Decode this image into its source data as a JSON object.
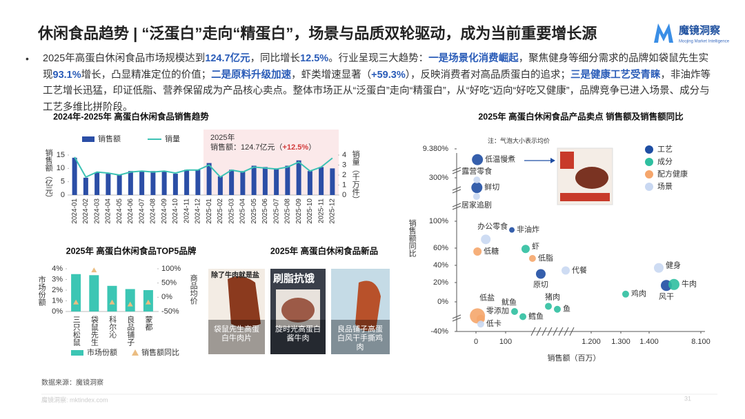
{
  "header": {
    "title": "休闲食品趋势 | “泛蛋白”走向“精蛋白”，场景与品质双轮驱动，成为当前重要增长源",
    "logo": "魔镜洞察",
    "logo_sub": "Moojing Market Intelligence"
  },
  "bullet": {
    "segments": [
      {
        "text": "2025年高蛋白休闲食品市场规模达到",
        "style": "normal"
      },
      {
        "text": "124.7亿元",
        "style": "highlight"
      },
      {
        "text": "，同比增长",
        "style": "normal"
      },
      {
        "text": "12.5%",
        "style": "highlight"
      },
      {
        "text": "。行业呈现三大趋势：",
        "style": "normal"
      },
      {
        "text": "一是场景化消费崛起",
        "style": "highlight"
      },
      {
        "text": "，聚焦健身等细分需求的品牌如袋鼠先生实现",
        "style": "normal"
      },
      {
        "text": "93.1%",
        "style": "highlight"
      },
      {
        "text": "增长，凸显精准定位的价值；",
        "style": "normal"
      },
      {
        "text": "二是原料升级加速",
        "style": "highlight"
      },
      {
        "text": "，虾类增速显著（",
        "style": "normal"
      },
      {
        "text": "+59.3%",
        "style": "highlight"
      },
      {
        "text": "），反映消费者对高品质蛋白的追求；",
        "style": "normal"
      },
      {
        "text": "三是健康工艺受青睐",
        "style": "highlight"
      },
      {
        "text": "，非油炸等工艺增长迅猛，印证低脂、营养保留成为产品核心卖点。整体市场正从“泛蛋白”走向“精蛋白”，从“好吃”迈向“好吃又健康”，品牌竞争已进入场景、成分与工艺多维比拼阶段。",
        "style": "normal"
      }
    ]
  },
  "chart_data": [
    {
      "type": "bar",
      "title": "2024年-2025年 高蛋白休闲食品销售趋势",
      "y_label": "销售额（亿元）",
      "y2_label": "销量（千万件）",
      "annotation": {
        "line1": "2025年",
        "text": "销售额：124.7亿元（",
        "highlight": "+12.5%",
        "end": "）"
      },
      "categories": [
        "2024-01",
        "2024-02",
        "2024-03",
        "2024-04",
        "2024-05",
        "2024-06",
        "2024-07",
        "2024-08",
        "2024-09",
        "2024-10",
        "2024-11",
        "2024-12",
        "2025-01",
        "2025-02",
        "2025-03",
        "2025-04",
        "2025-05",
        "2025-06",
        "2025-07",
        "2025-08",
        "2025-09",
        "2025-10",
        "2025-11",
        "2025-12"
      ],
      "series": [
        {
          "name": "销售额",
          "type": "bar",
          "color": "#2b4ea6",
          "values": [
            14,
            6.5,
            8.5,
            8,
            7.5,
            9,
            9,
            9,
            9,
            8,
            9.5,
            9.5,
            12,
            7,
            9.5,
            9,
            11,
            10.5,
            10,
            11,
            13,
            9,
            10.5,
            10
          ]
        },
        {
          "name": "销量",
          "type": "line",
          "axis": "y2",
          "color": "#3cc2b4",
          "values": [
            3.8,
            1.8,
            2.3,
            2.2,
            2.0,
            2.3,
            2.4,
            2.3,
            2.4,
            2.2,
            2.5,
            2.5,
            3.0,
            1.8,
            2.5,
            2.3,
            2.8,
            2.7,
            2.6,
            2.8,
            3.3,
            2.4,
            2.8,
            3.7
          ]
        }
      ],
      "ylim": [
        0,
        15
      ],
      "yticks": [
        0,
        5,
        10,
        15
      ],
      "y2lim": [
        0,
        4
      ],
      "y2ticks": [
        0,
        1,
        2,
        3,
        4
      ]
    },
    {
      "type": "bar",
      "title": "2025年 高蛋白休闲食品TOP5品牌",
      "y_label": "市场份额",
      "y2_label": "商品均价",
      "categories": [
        "三只松鼠",
        "袋鼠先生",
        "科尔沁",
        "良品铺子",
        "蒙都"
      ],
      "series": [
        {
          "name": "市场份额",
          "type": "bar",
          "color": "#3cc6b4",
          "values": [
            3.5,
            3.4,
            2.4,
            2.1,
            2.0
          ]
        },
        {
          "name": "销售额同比",
          "type": "triangle",
          "axis": "y2",
          "color": "#ebbd82",
          "values": [
            -18,
            95,
            -18,
            -25,
            -18
          ]
        }
      ],
      "ylim": [
        0,
        4
      ],
      "yticks": [
        {
          "value": 0,
          "label": "0%"
        },
        {
          "value": 1,
          "label": "1%"
        },
        {
          "value": 2,
          "label": "2%"
        },
        {
          "value": 3,
          "label": "3%"
        },
        {
          "value": 4,
          "label": "4%"
        }
      ],
      "y2lim": [
        -50,
        100
      ],
      "y2ticks": [
        {
          "value": -50,
          "label": "-50%"
        },
        {
          "value": 0,
          "label": "0%"
        },
        {
          "value": 50,
          "label": "50%"
        },
        {
          "value": 100,
          "label": "100%"
        }
      ]
    },
    {
      "type": "scatter",
      "title": "2025年 高蛋白休闲食品产品卖点 销售额及销售额同比",
      "note": "注：气泡大小表示均价",
      "x_label": "销售额（百万）",
      "y_label": "销售额同比",
      "series": [
        {
          "name": "工艺",
          "color": "#1f4ea3",
          "labels": [
            "低温慢煮",
            "鲜切",
            "非油炸",
            "原切",
            "风干"
          ],
          "x": [
            5,
            3,
            180,
            552,
            3633
          ],
          "values": [
            6000,
            255,
            87,
            30,
            17
          ],
          "sizes": [
            8,
            8,
            4,
            7,
            8
          ]
        },
        {
          "name": "成分",
          "color": "#2fbfa0",
          "labels": [
            "虾",
            "牛肉",
            "鸡肉",
            "猪肉",
            "鱼",
            "鱿鱼",
            "鳕鱼"
          ],
          "x": [
            357,
            4616,
            1317,
            650,
            765,
            215,
            322
          ],
          "values": [
            59,
            18,
            8,
            -6,
            -10,
            -13,
            -20
          ],
          "sizes": [
            6,
            8,
            5,
            5,
            5,
            5,
            5
          ]
        },
        {
          "name": "配方健康",
          "color": "#f5a66c",
          "labels": [
            "低糖",
            "低脂",
            "低盐",
            "零添加"
          ],
          "x": [
            5,
            445,
            5,
            16
          ],
          "values": [
            56,
            48,
            -19,
            -23
          ],
          "sizes": [
            6,
            5,
            11,
            6
          ]
        },
        {
          "name": "场景",
          "color": "#c9d8f2",
          "labels": [
            "露营零食",
            "居家追剧",
            "办公零食",
            "代餐",
            "健身",
            "低卡"
          ],
          "x": [
            3,
            2,
            33,
            872,
            2650,
            16
          ],
          "values": [
            290,
            214,
            73,
            34,
            37,
            -30
          ],
          "sizes": [
            5,
            5,
            7,
            6,
            7,
            5
          ]
        }
      ],
      "xlim": [
        0,
        8100
      ],
      "xticks": [
        0,
        100,
        {
          "value": 1200,
          "label": "1.200"
        },
        {
          "value": 1300,
          "label": "1.300"
        },
        {
          "value": 1400,
          "label": "1.400"
        },
        {
          "value": 8100,
          "label": "8.100"
        }
      ],
      "ylim": [
        -40,
        9380
      ],
      "yticks": [
        {
          "value": -40,
          "label": "-40%"
        },
        {
          "value": 0,
          "label": "0%"
        },
        {
          "value": 20,
          "label": "20%"
        },
        {
          "value": 40,
          "label": "40%"
        },
        {
          "value": 60,
          "label": "60%"
        },
        {
          "value": 100,
          "label": "100%"
        },
        {
          "value": 300,
          "label": "300%"
        },
        {
          "value": 9380,
          "label": "9.380%"
        }
      ]
    }
  ],
  "new_products": {
    "title": "2025年 高蛋白休闲食品新品",
    "items": [
      {
        "caption": "袋鼠先生高蛋白牛肉片",
        "tagline": "除了牛肉就是盐"
      },
      {
        "caption": "旋时光高蛋白酱牛肉",
        "tagline": "刷脂抗饿"
      },
      {
        "caption": "良品铺子高蛋白风干手撕鸡肉"
      }
    ]
  },
  "footer": {
    "source": "数据来源：魔镜洞察",
    "site": "魔镜洞察: mktindex.com",
    "page": "31"
  }
}
